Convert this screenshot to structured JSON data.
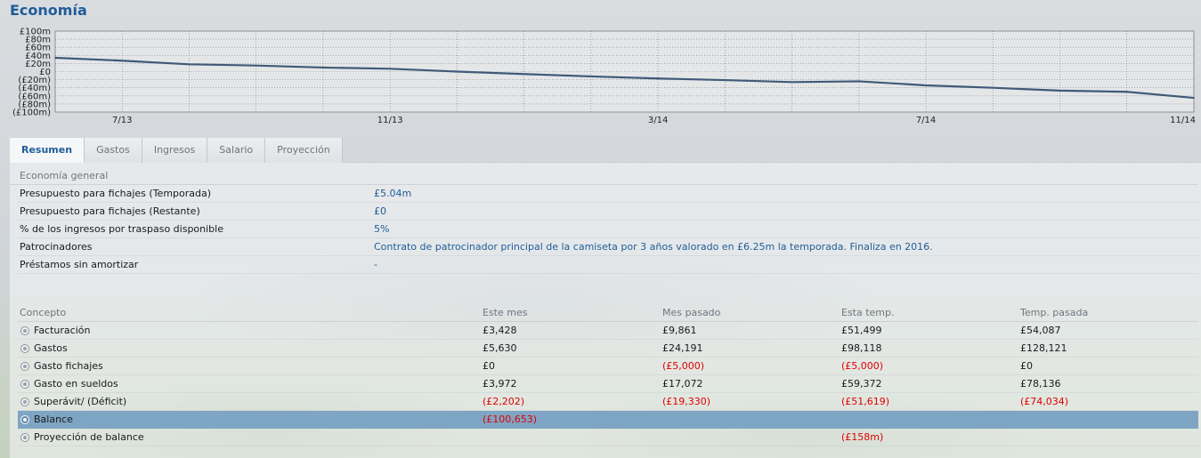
{
  "title": "Economía",
  "chart_data": {
    "type": "line",
    "y_tick_labels": [
      "£100m",
      "£80m",
      "£60m",
      "£40m",
      "£20m",
      "£0",
      "(£20m)",
      "(£40m)",
      "(£60m)",
      "(£80m)",
      "(£100m)"
    ],
    "ylim": [
      -100,
      100
    ],
    "x_tick_labels": [
      "7/13",
      "11/13",
      "3/14",
      "7/14",
      "11/14"
    ],
    "grid": true,
    "series": [
      {
        "color": "#3f5a78",
        "points": [
          [
            "6/13",
            34
          ],
          [
            "7/13",
            27
          ],
          [
            "8/13",
            18
          ],
          [
            "9/13",
            15
          ],
          [
            "10/13",
            10
          ],
          [
            "11/13",
            7
          ],
          [
            "12/13",
            0
          ],
          [
            "1/14",
            -6
          ],
          [
            "2/14",
            -12
          ],
          [
            "3/14",
            -17
          ],
          [
            "4/14",
            -21
          ],
          [
            "5/14",
            -26
          ],
          [
            "6/14",
            -24
          ],
          [
            "7/14",
            -34
          ],
          [
            "8/14",
            -40
          ],
          [
            "9/14",
            -47
          ],
          [
            "10/14",
            -50
          ],
          [
            "11/14",
            -65
          ]
        ]
      }
    ]
  },
  "tabs": [
    "Resumen",
    "Gastos",
    "Ingresos",
    "Salario",
    "Proyección"
  ],
  "general": {
    "header": "Economía general",
    "rows": [
      {
        "label": "Presupuesto para fichajes (Temporada)",
        "value": "£5.04m"
      },
      {
        "label": "Presupuesto para fichajes (Restante)",
        "value": "£0"
      },
      {
        "label": "% de los ingresos por traspaso disponible",
        "value": "5%"
      },
      {
        "label": "Patrocinadores",
        "value": "Contrato de patrocinador principal de la camiseta por 3 años valorado en £6.25m la temporada. Finaliza en 2016."
      },
      {
        "label": "Préstamos sin amortizar",
        "value": "-"
      }
    ]
  },
  "concepts": {
    "headers": [
      "Concepto",
      "Este mes",
      "Mes pasado",
      "Esta temp.",
      "Temp. pasada"
    ],
    "rows": [
      {
        "name": "Facturación",
        "values": [
          "£3,428",
          "£9,861",
          "£51,499",
          "£54,087"
        ]
      },
      {
        "name": "Gastos",
        "values": [
          "£5,630",
          "£24,191",
          "£98,118",
          "£128,121"
        ]
      },
      {
        "name": "Gasto fichajes",
        "values": [
          "£0",
          "(£5,000)",
          "(£5,000)",
          "£0"
        ]
      },
      {
        "name": "Gasto en sueldos",
        "values": [
          "£3,972",
          "£17,072",
          "£59,372",
          "£78,136"
        ]
      },
      {
        "name": "Superávit/ (Déficit)",
        "values": [
          "(£2,202)",
          "(£19,330)",
          "(£51,619)",
          "(£74,034)"
        ]
      },
      {
        "name": "Balance",
        "values": [
          "(£100,653)",
          "",
          "",
          ""
        ]
      },
      {
        "name": "Proyección de balance",
        "values": [
          "",
          "",
          "(£158m)",
          ""
        ]
      }
    ],
    "selected": "Balance"
  },
  "colors": {
    "accent": "#1f5c99",
    "negative": "#e00000",
    "highlight": "#7fa5c4"
  }
}
